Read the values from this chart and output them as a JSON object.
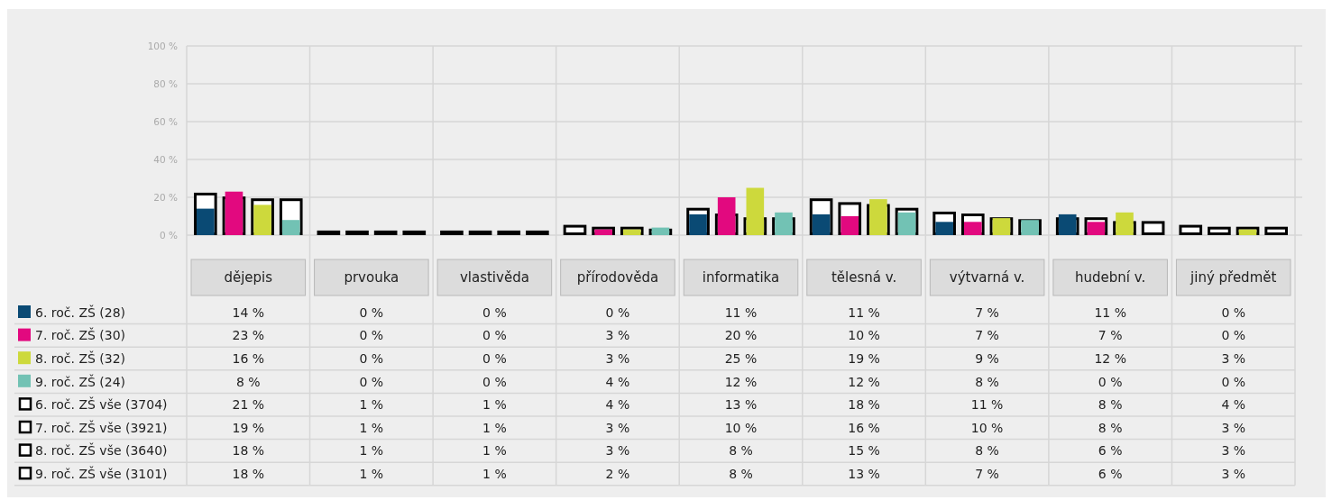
{
  "chart_data": {
    "type": "bar",
    "categories": [
      "dějepis",
      "prvouka",
      "vlastivěda",
      "přírodověda",
      "informatika",
      "tělesná v.",
      "výtvarná v.",
      "hudební v.",
      "jiný předmět"
    ],
    "ylim": [
      0,
      100
    ],
    "yticks": [
      {
        "value": 0,
        "label": "0 %"
      },
      {
        "value": 20,
        "label": "20 %"
      },
      {
        "value": 40,
        "label": "40 %"
      },
      {
        "value": 60,
        "label": "60 %"
      },
      {
        "value": 80,
        "label": "80 %"
      },
      {
        "value": 100,
        "label": "100 %"
      }
    ],
    "grid": true,
    "legend": "bottom left",
    "series": [
      {
        "name": "6. roč. ZŠ (28)",
        "color": "#0a4a74",
        "values": [
          14,
          0,
          0,
          0,
          11,
          11,
          7,
          11,
          0
        ],
        "value_labels": [
          "14 %",
          "0 %",
          "0 %",
          "0 %",
          "11 %",
          "11 %",
          "7 %",
          "11 %",
          "0 %"
        ]
      },
      {
        "name": "7. roč. ZŠ (30)",
        "color": "#e2097f",
        "values": [
          23,
          0,
          0,
          3,
          20,
          10,
          7,
          7,
          0
        ],
        "value_labels": [
          "23 %",
          "0 %",
          "0 %",
          "3 %",
          "20 %",
          "10 %",
          "7 %",
          "7 %",
          "0 %"
        ]
      },
      {
        "name": "8. roč. ZŠ (32)",
        "color": "#cdd93c",
        "values": [
          16,
          0,
          0,
          3,
          25,
          19,
          9,
          12,
          3
        ],
        "value_labels": [
          "16 %",
          "0 %",
          "0 %",
          "3 %",
          "25 %",
          "19 %",
          "9 %",
          "12 %",
          "3 %"
        ]
      },
      {
        "name": "9. roč. ZŠ (24)",
        "color": "#72c2b4",
        "values": [
          8,
          0,
          0,
          4,
          12,
          12,
          8,
          0,
          0
        ],
        "value_labels": [
          "8 %",
          "0 %",
          "0 %",
          "4 %",
          "12 %",
          "12 %",
          "8 %",
          "0 %",
          "0 %"
        ]
      },
      {
        "name": "6. roč. ZŠ vše (3704)",
        "color": "#000000",
        "line_style": "solid",
        "values": [
          21,
          1,
          1,
          4,
          13,
          18,
          11,
          8,
          4
        ],
        "value_labels": [
          "21 %",
          "1 %",
          "1 %",
          "4 %",
          "13 %",
          "18 %",
          "11 %",
          "8 %",
          "4 %"
        ]
      },
      {
        "name": "7. roč. ZŠ vše (3921)",
        "color": "#000000",
        "line_style": "solid",
        "values": [
          19,
          1,
          1,
          3,
          10,
          16,
          10,
          8,
          3
        ],
        "value_labels": [
          "19 %",
          "1 %",
          "1 %",
          "3 %",
          "10 %",
          "16 %",
          "10 %",
          "8 %",
          "3 %"
        ]
      },
      {
        "name": "8. roč. ZŠ vše (3640)",
        "color": "#000000",
        "line_style": "solid",
        "values": [
          18,
          1,
          1,
          3,
          8,
          15,
          8,
          6,
          3
        ],
        "value_labels": [
          "18 %",
          "1 %",
          "1 %",
          "3 %",
          "8 %",
          "15 %",
          "8 %",
          "6 %",
          "3 %"
        ]
      },
      {
        "name": "9. roč. ZŠ vše (3101)",
        "color": "#000000",
        "line_style": "solid",
        "values": [
          18,
          1,
          1,
          2,
          8,
          13,
          7,
          6,
          3
        ],
        "value_labels": [
          "18 %",
          "1 %",
          "1 %",
          "2 %",
          "8 %",
          "13 %",
          "7 %",
          "6 %",
          "3 %"
        ]
      }
    ]
  }
}
